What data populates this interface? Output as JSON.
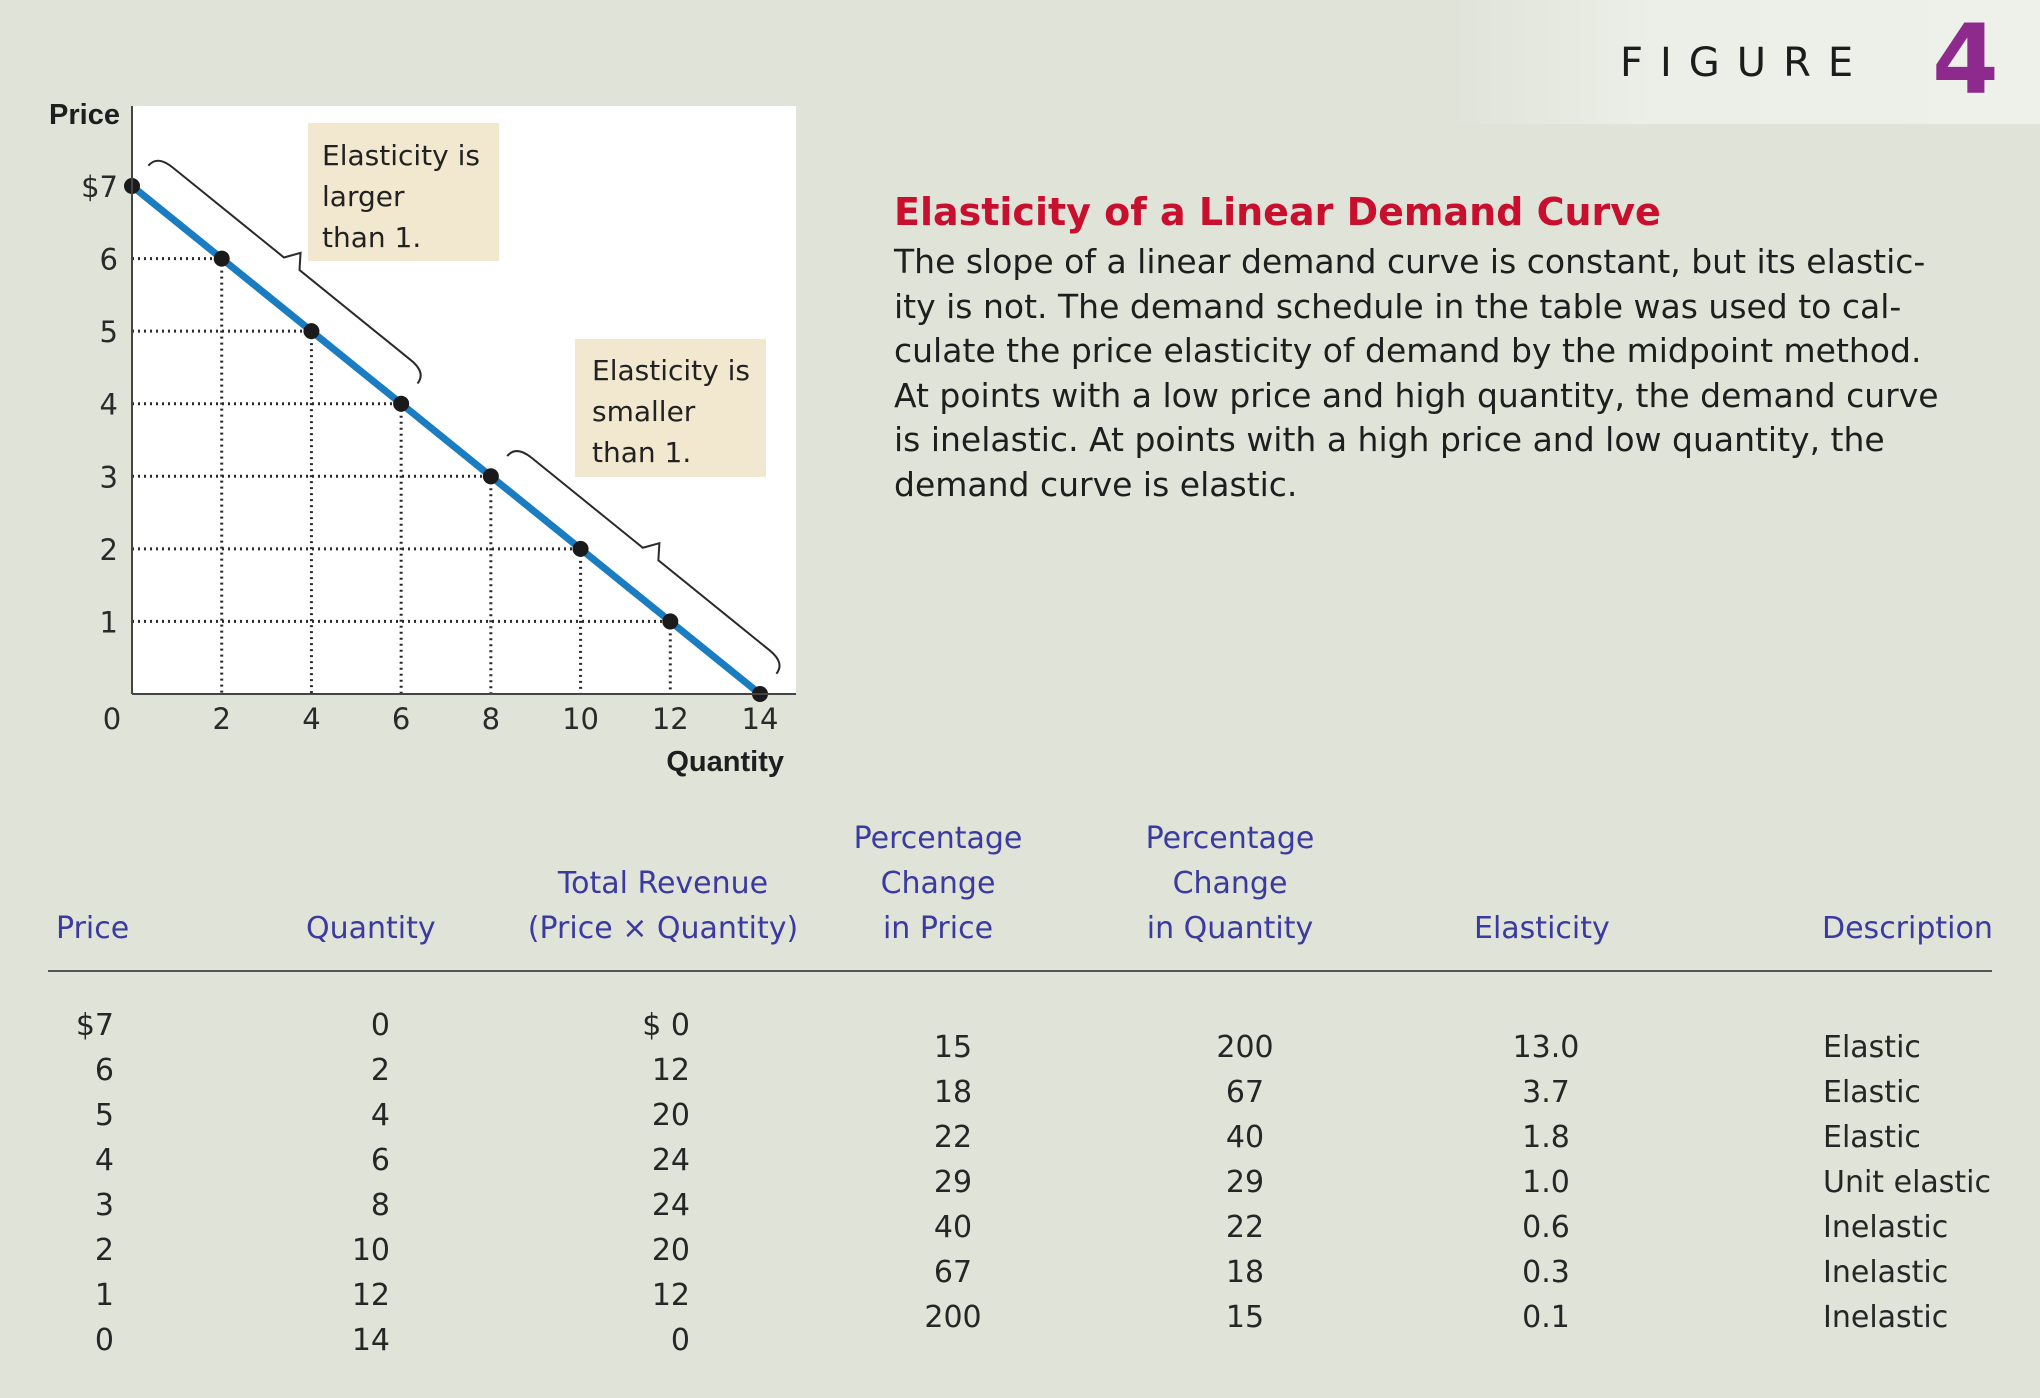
{
  "figure": {
    "word": "FIGURE",
    "number": "4"
  },
  "caption": {
    "title": "Elasticity of a Linear Demand Curve",
    "body": "The slope of a linear demand curve is constant, but its elastic- ity is not. The demand schedule in the table was used to cal- culate the price elasticity of demand by the midpoint method. At points with a low price and high quantity, the demand curve is inelastic. At points with a high price and low quantity, the demand curve is elastic."
  },
  "chart_data": {
    "type": "line",
    "xlabel": "Quantity",
    "ylabel": "Price",
    "xlim": [
      0,
      14
    ],
    "ylim": [
      0,
      7
    ],
    "x_ticks": [
      "0",
      "2",
      "4",
      "6",
      "8",
      "10",
      "12",
      "14"
    ],
    "y_ticks": [
      "$7",
      "6",
      "5",
      "4",
      "3",
      "2",
      "1"
    ],
    "series": [
      {
        "x": [
          0,
          2,
          4,
          6,
          8,
          10,
          12,
          14
        ],
        "y": [
          7,
          6,
          5,
          4,
          3,
          2,
          1,
          0
        ]
      }
    ],
    "line_color": "#1a7cc1",
    "annotations": [
      {
        "text": [
          "Elasticity is",
          "larger",
          "than 1."
        ],
        "applies_to_price": [
          7,
          4
        ]
      },
      {
        "text": [
          "Elasticity is",
          "smaller",
          "than 1."
        ],
        "applies_to_price": [
          3,
          0
        ]
      }
    ],
    "guides": "dotted"
  },
  "table": {
    "headers": {
      "price": "Price",
      "quantity": "Quantity",
      "revenue": [
        "Total Revenue",
        "(Price × Quantity)"
      ],
      "pct_price": [
        "Percentage",
        "Change",
        "in Price"
      ],
      "pct_quantity": [
        "Percentage",
        "Change",
        "in Quantity"
      ],
      "elasticity": "Elasticity",
      "description": "Description"
    },
    "price": [
      "$7",
      "6",
      "5",
      "4",
      "3",
      "2",
      "1",
      "0"
    ],
    "quantity": [
      "0",
      "2",
      "4",
      "6",
      "8",
      "10",
      "12",
      "14"
    ],
    "revenue": [
      "$ 0",
      "12",
      "20",
      "24",
      "24",
      "20",
      "12",
      "0"
    ],
    "pct_price": [
      "15",
      "18",
      "22",
      "29",
      "40",
      "67",
      "200"
    ],
    "pct_quantity": [
      "200",
      "67",
      "40",
      "29",
      "22",
      "18",
      "15"
    ],
    "elasticity": [
      "13.0",
      "3.7",
      "1.8",
      "1.0",
      "0.6",
      "0.3",
      "0.1"
    ],
    "description": [
      "Elastic",
      "Elastic",
      "Elastic",
      "Unit elastic",
      "Inelastic",
      "Inelastic",
      "Inelastic"
    ]
  }
}
